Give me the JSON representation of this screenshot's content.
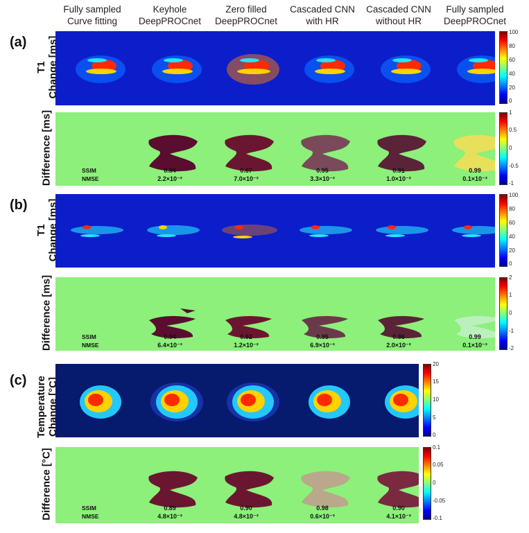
{
  "columns": [
    "Fully sampled\nCurve fitting",
    "Keyhole\nDeepPROCnet",
    "Zero filled\nDeepPROCnet",
    "Cascaded CNN\nwith HR",
    "Cascaded CNN\nwithout HR",
    "Fully sampled\nDeepPROCnet"
  ],
  "column_lines": [
    [
      "Fully sampled",
      "Curve fitting"
    ],
    [
      "Keyhole",
      "DeepPROCnet"
    ],
    [
      "Zero filled",
      "DeepPROCnet"
    ],
    [
      "Cascaded CNN",
      "with HR"
    ],
    [
      "Cascaded CNN",
      "without HR"
    ],
    [
      "Fully sampled",
      "DeepPROCnet"
    ]
  ],
  "panels": {
    "a": {
      "label": "(a)",
      "map_label_1": "T1",
      "map_label_2": "Change [ms]",
      "diff_label": "Difference [ms]",
      "map_ticks": [
        "100",
        "80",
        "60",
        "40",
        "20",
        "0"
      ],
      "diff_ticks": [
        "1",
        "0.5",
        "0",
        "-0.5",
        "-1"
      ],
      "ssim_label": "SSIM",
      "nmse_label": "NMSE",
      "ssim": [
        "0.84",
        "0.67",
        "0.95",
        "0.91",
        "0.99"
      ],
      "nmse": [
        "2.2×10⁻²",
        "7.0×10⁻²",
        "3.3×10⁻³",
        "1.0×10⁻²",
        "0.1×10⁻³"
      ]
    },
    "b": {
      "label": "(b)",
      "map_label_1": "T1",
      "map_label_2": "Change [ms]",
      "diff_label": "Difference [ms]",
      "map_ticks": [
        "100",
        "80",
        "60",
        "40",
        "20",
        "0"
      ],
      "diff_ticks": [
        "2",
        "1",
        "0",
        "-1",
        "-2"
      ],
      "ssim_label": "SSIM",
      "nmse_label": "NMSE",
      "ssim": [
        "0.94",
        "0.92",
        "0.95",
        "0.86",
        "0.99"
      ],
      "nmse": [
        "6.4×10⁻³",
        "1.2×10⁻²",
        "6.9×10⁻³",
        "2.0×10⁻²",
        "0.1×10⁻³"
      ]
    },
    "c": {
      "label": "(c)",
      "map_label_1": "Temperature",
      "map_label_2": "Change [°C]",
      "diff_label": "Difference [°C]",
      "map_ticks": [
        "20",
        "15",
        "10",
        "5",
        "0"
      ],
      "diff_ticks": [
        "0.1",
        "0.05",
        "0",
        "-0.05",
        "-0.1"
      ],
      "ssim_label": "SSIM",
      "nmse_label": "NMSE",
      "ssim": [
        "0.89",
        "0.90",
        "0.98",
        "0.90"
      ],
      "nmse": [
        "4.8×10⁻³",
        "4.8×10⁻³",
        "0.6×10⁻³",
        "4.1×10⁻³"
      ]
    }
  }
}
